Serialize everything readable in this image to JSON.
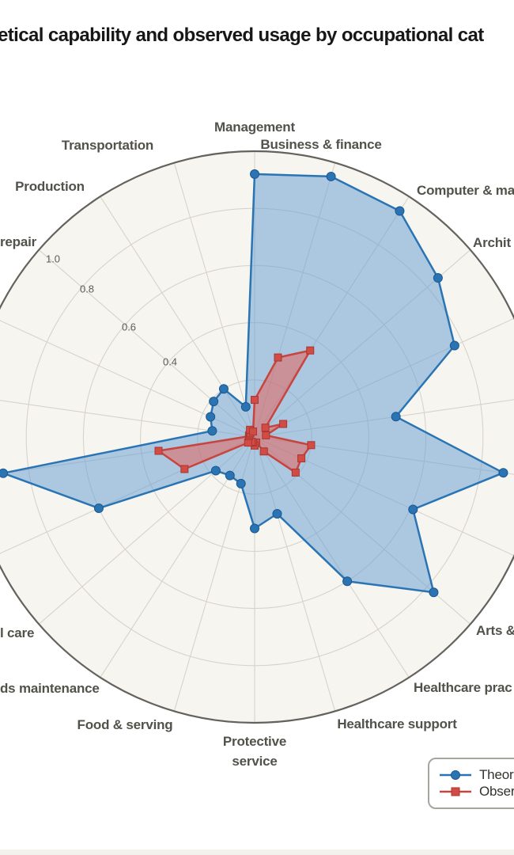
{
  "title": {
    "visible_text": "etical capability and observed usage by occupational cat"
  },
  "legend": {
    "items": [
      {
        "label": "Theor",
        "marker": "circle",
        "color": "#2a74b4"
      },
      {
        "label": "Obser",
        "marker": "square",
        "color": "#c8443f"
      }
    ]
  },
  "radial_ticks": [
    {
      "label": "1.0",
      "value": 1.0
    },
    {
      "label": "0.8",
      "value": 0.8
    },
    {
      "label": "0.6",
      "value": 0.6
    },
    {
      "label": "0.4",
      "value": 0.4
    }
  ],
  "colors": {
    "theoretical_line": "#2a74b4",
    "theoretical_marker_edge": "#1b578f",
    "theoretical_fill": "rgba(110,162,212,0.55)",
    "observed_line": "#c8443f",
    "observed_marker_fill": "#d24b45",
    "observed_marker_edge": "#a83631",
    "observed_fill": "rgba(229,100,93,0.55)",
    "disc_fill": "#f6f5f0",
    "grid_line": "#d6d3cb",
    "outer_ring": "#63625c",
    "title_text": "#171717",
    "label_text": "#52514a"
  },
  "chart_data": {
    "type": "radar",
    "axes_count": 22,
    "start_angle_deg": 90,
    "direction": "clockwise",
    "rmax": 1.0,
    "grid_rings": [
      0.2,
      0.4,
      0.6,
      0.8,
      1.0
    ],
    "categories": [
      "Management",
      "Business & finance",
      "Computer & ma",
      "Archit",
      "",
      "",
      "",
      "",
      "Arts &",
      "Healthcare prac",
      "Healthcare support",
      "Protective service",
      "Food & serving",
      "ds maintenance",
      "l care",
      "",
      "",
      "",
      "",
      "repair",
      "Production",
      "Transportation"
    ],
    "series": [
      {
        "name": "Theor",
        "marker": "circle",
        "values": [
          0.92,
          0.95,
          0.94,
          0.85,
          0.77,
          0.5,
          0.88,
          0.61,
          0.83,
          0.6,
          0.28,
          0.32,
          0.17,
          0.16,
          0.18,
          0.6,
          0.89,
          0.15,
          0.17,
          0.19,
          0.2,
          0.11
        ]
      },
      {
        "name": "Obser",
        "marker": "square",
        "values": [
          0.13,
          0.29,
          0.36,
          0.05,
          0.11,
          0.04,
          0.2,
          0.18,
          0.19,
          0.06,
          0.02,
          0.03,
          0.02,
          0.02,
          0.03,
          0.27,
          0.34,
          0.02,
          0.02,
          0.02,
          0.03,
          0.02
        ]
      }
    ]
  }
}
